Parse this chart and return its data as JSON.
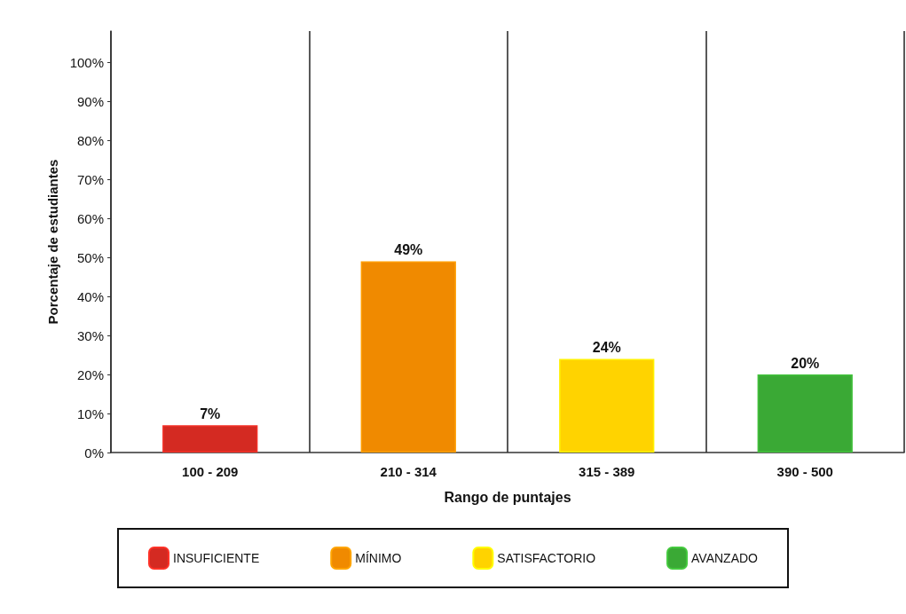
{
  "chart_data": {
    "type": "bar",
    "xlabel": "Rango de puntajes",
    "ylabel": "Porcentaje de estudiantes",
    "categories": [
      "100 - 209",
      "210 - 314",
      "315 - 389",
      "390 - 500"
    ],
    "stacked": true,
    "series": [
      {
        "name": "INSUFICIENTE",
        "color": "#d42a22",
        "values": [
          7,
          null,
          null,
          null
        ],
        "value_labels": [
          "7%",
          null,
          null,
          null
        ]
      },
      {
        "name": "MÍNIMO",
        "color": "#f08a00",
        "values": [
          null,
          49,
          null,
          null
        ],
        "value_labels": [
          null,
          "49%",
          null,
          null
        ]
      },
      {
        "name": "SATISFACTORIO",
        "color": "#ffd300",
        "values": [
          null,
          null,
          24,
          null
        ],
        "value_labels": [
          null,
          null,
          "24%",
          null
        ]
      },
      {
        "name": "AVANZADO",
        "color": "#3aa935",
        "values": [
          null,
          null,
          null,
          20
        ],
        "value_labels": [
          null,
          null,
          null,
          "20%"
        ]
      }
    ],
    "ylim": [
      0,
      108
    ],
    "yticks": [
      {
        "value": 0,
        "label": "0%"
      },
      {
        "value": 10,
        "label": "10%"
      },
      {
        "value": 20,
        "label": "20%"
      },
      {
        "value": 30,
        "label": "30%"
      },
      {
        "value": 40,
        "label": "40%"
      },
      {
        "value": 50,
        "label": "50%"
      },
      {
        "value": 60,
        "label": "60%"
      },
      {
        "value": 70,
        "label": "70%"
      },
      {
        "value": 80,
        "label": "80%"
      },
      {
        "value": 90,
        "label": "90%"
      },
      {
        "value": 100,
        "label": "100%"
      }
    ],
    "grid": "x",
    "legend": "bottom"
  }
}
